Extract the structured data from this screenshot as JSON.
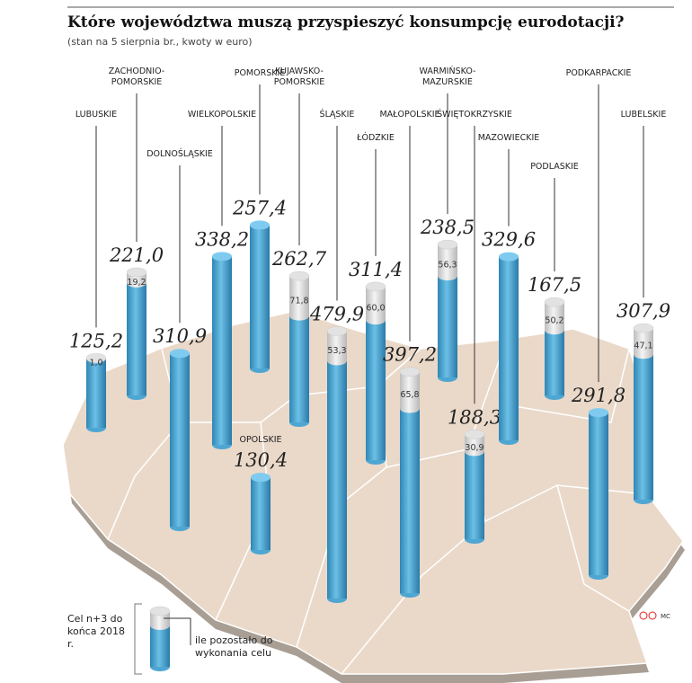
{
  "chart_data": {
    "type": "cylinder",
    "title": "Które województwa muszą  przyspieszyć konsumpcję eurodotacji?",
    "subtitle": "(stan na 5 sierpnia br., kwoty w euro)",
    "credit": "MC",
    "categories": [
      "LUBUSKIE",
      "ZACHODNIO-POMORSKIE",
      "DOLNOŚLĄSKIE",
      "WIELKOPOLSKIE",
      "POMORSKIE",
      "OPOLSKIE",
      "KUJAWSKO-POMORSKIE",
      "ŚLĄSKIE",
      "ŁÓDZKIE",
      "MAŁOPOLSKIE",
      "WARMIŃSKO-MAZURSKIE",
      "ŚWIĘTOKRZYSKIE",
      "MAZOWIECKIE",
      "PODLASKIE",
      "PODKARPACKIE",
      "LUBELSKIE"
    ],
    "series": [
      {
        "name": "Cel n+3 do końca 2018 r.",
        "color": "#4ea6d2",
        "values": [
          125.2,
          221.0,
          310.9,
          338.2,
          257.4,
          130.4,
          262.7,
          479.9,
          311.4,
          397.2,
          238.5,
          188.3,
          329.6,
          167.5,
          291.8,
          307.9
        ],
        "value_labels": [
          "125,2",
          "221,0",
          "310,9",
          "338,2",
          "257,4",
          "130,4",
          "262,7",
          "479,9",
          "311,4",
          "397,2",
          "238,5",
          "188,3",
          "329,6",
          "167,5",
          "291,8",
          "307,9"
        ]
      },
      {
        "name": "ile pozostało do wykonania celu",
        "color": "#e2e2e2",
        "values": [
          1.0,
          19.2,
          null,
          null,
          null,
          null,
          71.8,
          53.3,
          60.0,
          65.8,
          56.3,
          30.9,
          null,
          50.2,
          null,
          47.1
        ],
        "value_labels": [
          "1,0",
          "19,2",
          null,
          null,
          null,
          null,
          "71,8",
          "53,3",
          "60,0",
          "65,8",
          "56,3",
          "30,9",
          null,
          "50,2",
          null,
          "47,1"
        ]
      }
    ]
  }
}
